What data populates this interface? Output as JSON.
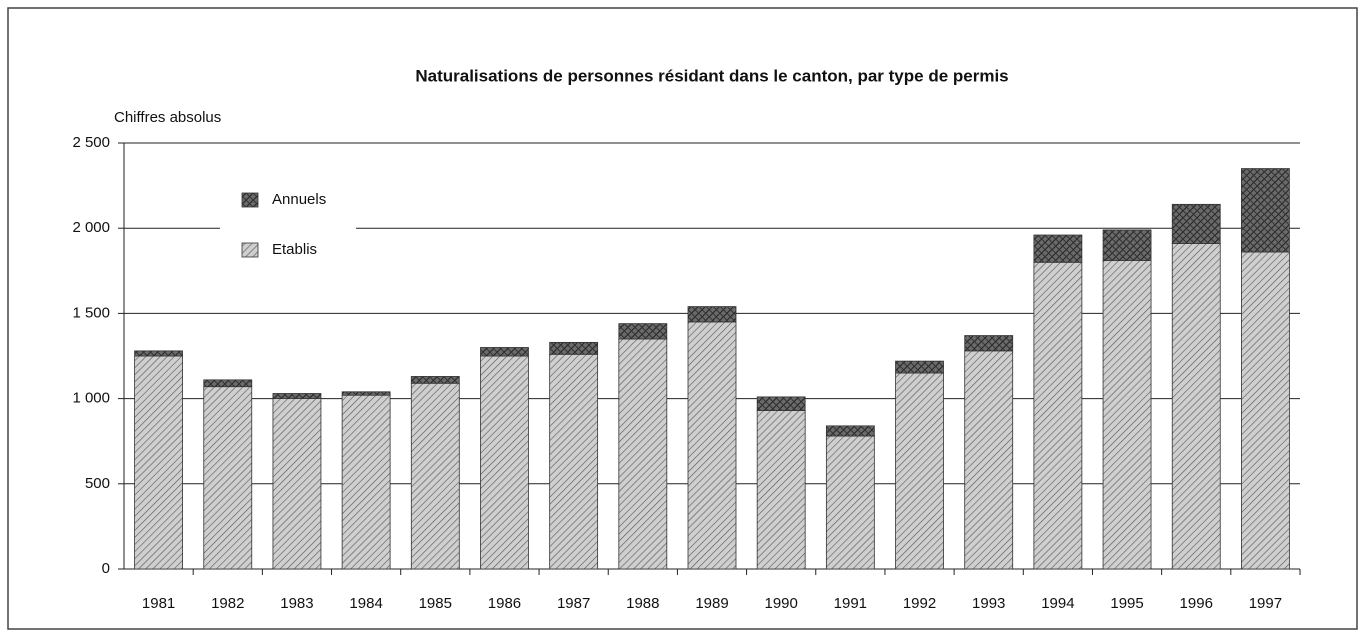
{
  "chart_data": {
    "type": "stacked-bar",
    "title": "Naturalisations de personnes résidant dans le canton, par type de permis",
    "y_label": "Chiffres absolus",
    "categories": [
      "1981",
      "1982",
      "1983",
      "1984",
      "1985",
      "1986",
      "1987",
      "1988",
      "1989",
      "1990",
      "1991",
      "1992",
      "1993",
      "1994",
      "1995",
      "1996",
      "1997"
    ],
    "series": [
      {
        "name": "Etablis",
        "color": "#cfcfcf",
        "values": [
          1250,
          1070,
          1000,
          1020,
          1090,
          1250,
          1260,
          1350,
          1450,
          930,
          780,
          1150,
          1280,
          1800,
          1810,
          1910,
          1860
        ]
      },
      {
        "name": "Annuels",
        "color": "#6a6a6a",
        "values": [
          30,
          40,
          30,
          20,
          40,
          50,
          70,
          90,
          90,
          80,
          60,
          70,
          90,
          160,
          180,
          230,
          490
        ]
      }
    ],
    "ylim": [
      0,
      2500
    ],
    "yticks": [
      0,
      500,
      {
        "value": 1000,
        "label": "1 000"
      },
      {
        "value": 1500,
        "label": "1 500"
      },
      {
        "value": 2000,
        "label": "2 000"
      },
      {
        "value": 2500,
        "label": "2 500"
      }
    ],
    "grid": true
  }
}
